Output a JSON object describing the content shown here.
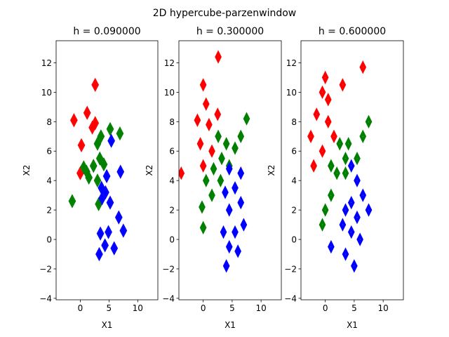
{
  "figure": {
    "suptitle": "2D hypercube-parzenwindow"
  },
  "chart_data": [
    {
      "type": "contour",
      "title": "h = 0.090000",
      "xlabel": "X1",
      "ylabel": "X2",
      "xlim": [
        -4.2,
        13.5
      ],
      "ylim": [
        -4.1,
        13.5
      ],
      "xticks": [
        0,
        5,
        10
      ],
      "yticks": [
        -4,
        -2,
        0,
        2,
        4,
        6,
        8,
        10,
        12
      ],
      "series": [
        {
          "color": "#ff0000",
          "points": [
            [
              2.6,
              10.5
            ],
            [
              -1.1,
              8.1
            ],
            [
              1.2,
              8.6
            ],
            [
              2.1,
              7.6
            ],
            [
              0.2,
              6.4
            ],
            [
              0.0,
              4.5
            ],
            [
              2.6,
              7.9
            ]
          ]
        },
        {
          "color": "#008000",
          "points": [
            [
              3.0,
              6.5
            ],
            [
              3.6,
              7.0
            ],
            [
              3.4,
              5.5
            ],
            [
              2.3,
              5.0
            ],
            [
              1.5,
              4.2
            ],
            [
              0.6,
              4.9
            ],
            [
              3.0,
              4.0
            ],
            [
              3.2,
              2.4
            ],
            [
              5.2,
              7.5
            ],
            [
              6.9,
              7.2
            ],
            [
              -1.4,
              2.6
            ],
            [
              4.1,
              5.1
            ],
            [
              1.1,
              4.6
            ]
          ]
        },
        {
          "color": "#0000ff",
          "points": [
            [
              5.4,
              6.7
            ],
            [
              7.0,
              4.6
            ],
            [
              4.6,
              4.3
            ],
            [
              4.4,
              3.2
            ],
            [
              3.8,
              2.8
            ],
            [
              5.2,
              2.5
            ],
            [
              6.7,
              1.5
            ],
            [
              7.5,
              0.6
            ],
            [
              3.5,
              0.4
            ],
            [
              4.9,
              0.5
            ],
            [
              4.3,
              -0.4
            ],
            [
              3.3,
              -1.0
            ],
            [
              5.9,
              -0.6
            ],
            [
              3.7,
              3.5
            ]
          ]
        }
      ]
    },
    {
      "type": "contour",
      "title": "h = 0.300000",
      "xlabel": "X1",
      "ylabel": "X2",
      "xlim": [
        -4.2,
        13.5
      ],
      "ylim": [
        -4.1,
        13.5
      ],
      "xticks": [
        0,
        5,
        10
      ],
      "yticks": [
        -4,
        -2,
        0,
        2,
        4,
        6,
        8,
        10,
        12
      ],
      "series": [
        {
          "color": "#ff0000",
          "points": [
            [
              2.6,
              12.4
            ],
            [
              0.0,
              10.5
            ],
            [
              0.5,
              9.2
            ],
            [
              -1.0,
              8.1
            ],
            [
              1.0,
              7.8
            ],
            [
              2.5,
              8.5
            ],
            [
              -0.5,
              6.5
            ],
            [
              1.5,
              6.0
            ],
            [
              -3.8,
              4.5
            ],
            [
              0.0,
              5.0
            ]
          ]
        },
        {
          "color": "#008000",
          "points": [
            [
              2.6,
              7.0
            ],
            [
              4.0,
              6.5
            ],
            [
              3.2,
              5.5
            ],
            [
              1.8,
              4.8
            ],
            [
              0.5,
              4.0
            ],
            [
              3.0,
              4.0
            ],
            [
              4.5,
              5.0
            ],
            [
              6.5,
              7.0
            ],
            [
              7.5,
              8.2
            ],
            [
              -0.2,
              2.2
            ],
            [
              1.5,
              3.0
            ],
            [
              0.0,
              0.8
            ],
            [
              5.5,
              6.2
            ]
          ]
        },
        {
          "color": "#0000ff",
          "points": [
            [
              4.5,
              4.8
            ],
            [
              5.5,
              3.5
            ],
            [
              6.5,
              2.5
            ],
            [
              4.5,
              2.0
            ],
            [
              7.0,
              1.0
            ],
            [
              5.5,
              0.5
            ],
            [
              3.5,
              0.5
            ],
            [
              4.5,
              -0.5
            ],
            [
              6.0,
              -0.8
            ],
            [
              6.5,
              4.5
            ],
            [
              3.8,
              3.2
            ],
            [
              4.0,
              -1.8
            ]
          ]
        }
      ]
    },
    {
      "type": "contour",
      "title": "h = 0.600000",
      "xlabel": "X1",
      "ylabel": "X2",
      "xlim": [
        -4.2,
        13.5
      ],
      "ylim": [
        -4.1,
        13.5
      ],
      "xticks": [
        0,
        5,
        10
      ],
      "yticks": [
        -4,
        -2,
        0,
        2,
        4,
        6,
        8,
        10,
        12
      ],
      "series": [
        {
          "color": "#ff0000",
          "points": [
            [
              0.0,
              11.0
            ],
            [
              -0.5,
              10.0
            ],
            [
              0.5,
              9.5
            ],
            [
              -1.5,
              8.5
            ],
            [
              0.5,
              8.0
            ],
            [
              1.5,
              7.0
            ],
            [
              -2.5,
              7.0
            ],
            [
              -0.5,
              6.0
            ],
            [
              -2.0,
              5.0
            ],
            [
              3.0,
              10.5
            ],
            [
              6.5,
              11.7
            ]
          ]
        },
        {
          "color": "#008000",
          "points": [
            [
              2.5,
              6.5
            ],
            [
              4.0,
              6.5
            ],
            [
              3.5,
              5.5
            ],
            [
              2.0,
              4.5
            ],
            [
              1.0,
              5.0
            ],
            [
              3.5,
              4.5
            ],
            [
              1.0,
              3.0
            ],
            [
              6.5,
              7.0
            ],
            [
              7.5,
              8.0
            ],
            [
              0.0,
              2.0
            ],
            [
              -0.5,
              1.0
            ],
            [
              5.5,
              5.5
            ]
          ]
        },
        {
          "color": "#0000ff",
          "points": [
            [
              4.5,
              5.0
            ],
            [
              5.5,
              4.0
            ],
            [
              4.5,
              2.5
            ],
            [
              3.5,
              2.0
            ],
            [
              6.5,
              3.0
            ],
            [
              5.5,
              1.5
            ],
            [
              3.0,
              1.0
            ],
            [
              4.5,
              0.5
            ],
            [
              6.0,
              0.0
            ],
            [
              3.5,
              -1.0
            ],
            [
              5.0,
              -1.8
            ],
            [
              7.5,
              2.0
            ],
            [
              1.0,
              -0.5
            ]
          ]
        }
      ]
    }
  ]
}
